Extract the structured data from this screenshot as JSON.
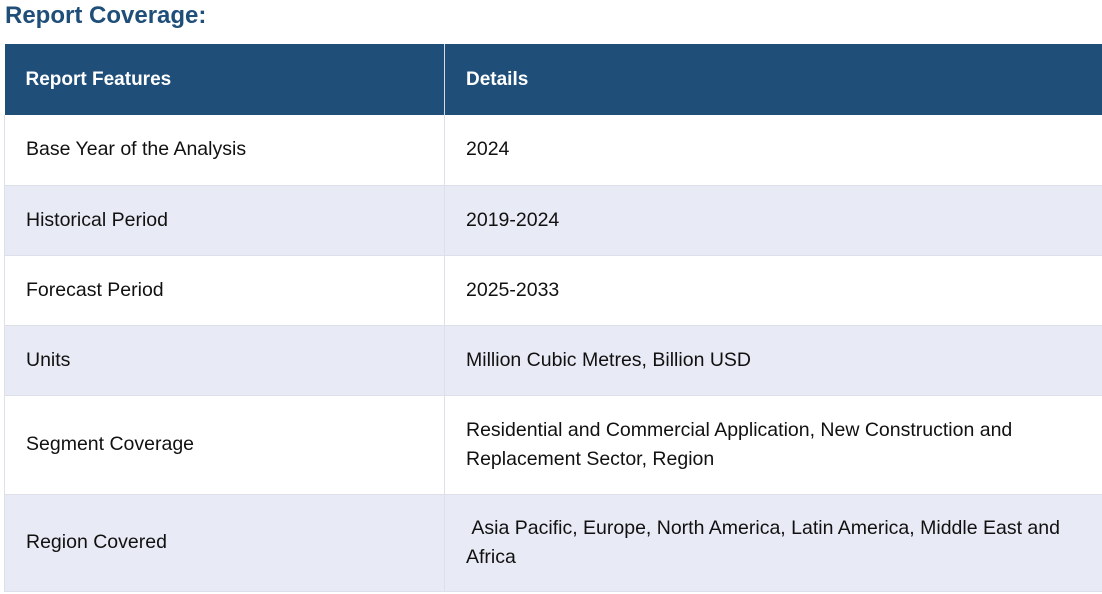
{
  "heading": "Report Coverage:",
  "table": {
    "header": {
      "col1": "Report Features",
      "col2": "Details"
    },
    "rows": [
      {
        "feature": "Base Year of the Analysis",
        "details": "2024"
      },
      {
        "feature": "Historical Period",
        "details": "2019-2024"
      },
      {
        "feature": "Forecast Period",
        "details": "2025-2033"
      },
      {
        "feature": "Units",
        "details": "Million Cubic Metres, Billion USD"
      },
      {
        "feature": "Segment Coverage",
        "details": "Residential and Commercial Application, New Construction and Replacement Sector, Region"
      },
      {
        "feature": "Region Covered",
        "details": " Asia Pacific, Europe, North America, Latin America, Middle East and Africa"
      }
    ]
  },
  "colors": {
    "header_bg": "#1f4e79",
    "heading_text": "#1f4e79",
    "stripe_bg": "#e8eaf5"
  }
}
